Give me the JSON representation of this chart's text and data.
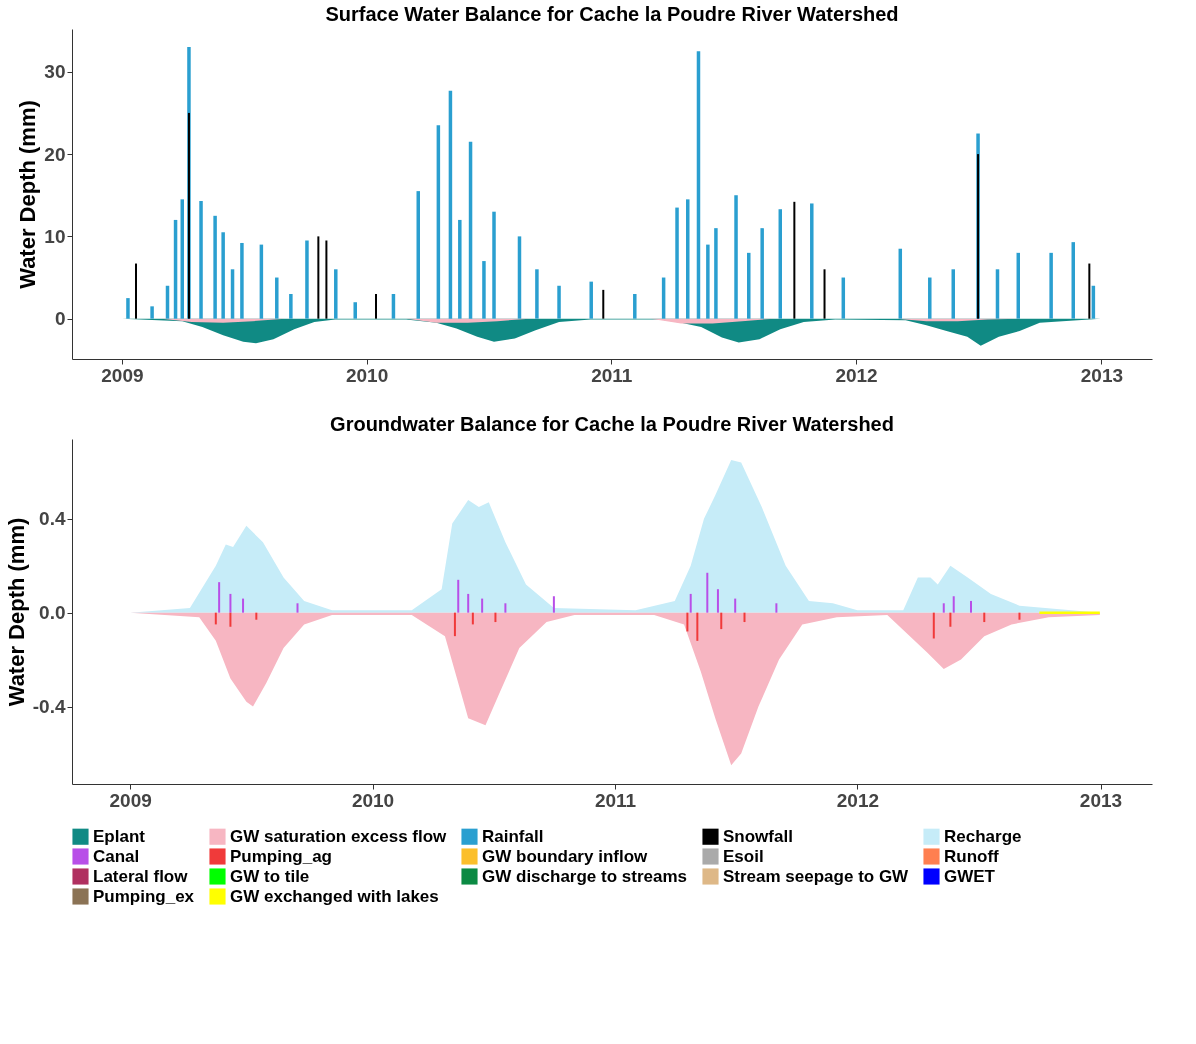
{
  "chart_data": [
    {
      "type": "bar",
      "title": "Surface Water Balance for Cache la Poudre River Watershed",
      "ylabel": "Water Depth (mm)",
      "xlim": [
        "2008-10-26",
        "2013-03-10"
      ],
      "xticks": [
        "2009",
        "2010",
        "2011",
        "2012",
        "2013"
      ],
      "ylim": [
        -4.9,
        35.2
      ],
      "yticks": [
        0,
        10,
        20,
        30
      ],
      "grid": false,
      "legend": "bottom",
      "series": [
        {
          "name": "Eplant",
          "color": "#108a84",
          "type": "area",
          "x": [
            "2009-01-01",
            "2009-04-01",
            "2009-05-01",
            "2009-06-01",
            "2009-07-01",
            "2009-07-20",
            "2009-08-15",
            "2009-09-15",
            "2009-10-15",
            "2009-11-15",
            "2010-03-01",
            "2010-04-15",
            "2010-05-15",
            "2010-06-15",
            "2010-07-10",
            "2010-08-10",
            "2010-09-10",
            "2010-10-15",
            "2010-12-01",
            "2011-03-15",
            "2011-04-15",
            "2011-05-15",
            "2011-06-15",
            "2011-07-10",
            "2011-08-10",
            "2011-09-10",
            "2011-10-15",
            "2011-12-01",
            "2012-03-15",
            "2012-04-15",
            "2012-05-15",
            "2012-06-15",
            "2012-07-05",
            "2012-08-01",
            "2012-09-01",
            "2012-10-01",
            "2012-12-31"
          ],
          "values": [
            0,
            -0.3,
            -1,
            -2,
            -2.8,
            -3,
            -2.5,
            -1.3,
            -0.4,
            -0.1,
            -0.1,
            -0.5,
            -1.2,
            -2.2,
            -2.8,
            -2.4,
            -1.4,
            -0.4,
            -0.1,
            -0.1,
            -0.5,
            -1,
            -2.3,
            -2.9,
            -2.5,
            -1.3,
            -0.4,
            -0.1,
            -0.2,
            -0.8,
            -1.5,
            -2.2,
            -3.3,
            -2.2,
            -1.5,
            -0.5,
            0
          ]
        },
        {
          "name": "GW saturation excess flow",
          "color": "#f7b6c2",
          "type": "area",
          "x": [
            "2009-03-01",
            "2009-04-15",
            "2009-06-01",
            "2009-07-15",
            "2009-09-01",
            "2010-03-01",
            "2010-04-15",
            "2010-06-01",
            "2010-07-15",
            "2010-09-01",
            "2011-03-01",
            "2011-04-15",
            "2011-06-01",
            "2011-07-15",
            "2011-09-01",
            "2012-03-01",
            "2012-04-15",
            "2012-06-01",
            "2012-07-15",
            "2012-09-01"
          ],
          "values": [
            0,
            -0.4,
            -0.5,
            -0.3,
            0,
            0,
            -0.5,
            -0.5,
            -0.3,
            0,
            0,
            -0.6,
            -0.6,
            -0.3,
            0,
            0,
            -0.3,
            -0.3,
            -0.1,
            0
          ]
        },
        {
          "name": "Rainfall",
          "color": "#2a9fd0",
          "x": [
            "2009-01-10",
            "2009-02-15",
            "2009-03-10",
            "2009-03-22",
            "2009-04-01",
            "2009-04-11",
            "2009-04-29",
            "2009-05-20",
            "2009-06-01",
            "2009-06-15",
            "2009-06-29",
            "2009-07-28",
            "2009-08-20",
            "2009-09-10",
            "2009-10-04",
            "2009-11-16",
            "2009-12-15",
            "2010-02-10",
            "2010-03-19",
            "2010-04-18",
            "2010-05-06",
            "2010-05-20",
            "2010-06-05",
            "2010-06-25",
            "2010-07-10",
            "2010-08-17",
            "2010-09-12",
            "2010-10-15",
            "2010-12-02",
            "2011-02-05",
            "2011-03-20",
            "2011-04-09",
            "2011-04-25",
            "2011-05-11",
            "2011-05-25",
            "2011-06-06",
            "2011-07-06",
            "2011-07-25",
            "2011-08-14",
            "2011-09-10",
            "2011-10-27",
            "2011-12-13",
            "2012-03-07",
            "2012-04-20",
            "2012-05-25",
            "2012-07-01",
            "2012-07-30",
            "2012-08-30",
            "2012-10-18",
            "2012-11-20",
            "2012-12-20"
          ],
          "values": [
            2.5,
            1.5,
            4,
            12,
            14.5,
            33,
            14.3,
            12.5,
            10.5,
            6,
            9.2,
            9,
            5,
            3,
            9.5,
            6,
            2,
            3,
            15.5,
            23.5,
            27.7,
            12,
            21.5,
            7,
            13,
            10,
            6,
            4,
            4.5,
            3,
            5,
            13.5,
            14.5,
            32.5,
            9,
            11,
            15,
            8,
            11,
            13.3,
            14,
            5,
            8.5,
            5,
            6,
            22.5,
            6,
            8,
            8,
            9.3,
            4
          ]
        },
        {
          "name": "Snowfall",
          "color": "#000000",
          "x": [
            "2009-01-22",
            "2009-04-11",
            "2009-10-21",
            "2009-11-02",
            "2010-01-15",
            "2010-12-20",
            "2011-10-01",
            "2011-11-15",
            "2012-07-01",
            "2012-12-14"
          ],
          "values": [
            6.7,
            25,
            10,
            9.5,
            3,
            3.5,
            14.2,
            6,
            20,
            6.7
          ]
        }
      ]
    },
    {
      "type": "area",
      "title": "Groundwater Balance for Cache la Poudre River Watershed",
      "ylabel": "Water Depth (mm)",
      "xlim": [
        "2008-10-13",
        "2013-03-12"
      ],
      "xticks": [
        "2009",
        "2010",
        "2011",
        "2012",
        "2013"
      ],
      "ylim": [
        -0.73,
        0.74
      ],
      "yticks": [
        {
          "value": -0.4,
          "label": "-0.4"
        },
        {
          "value": 0,
          "label": "0.0"
        },
        {
          "value": 0.4,
          "label": "0.4"
        }
      ],
      "grid": false,
      "legend": "bottom",
      "series": [
        {
          "name": "Recharge",
          "color": "#c6ecf8",
          "x": [
            "2009-01-01",
            "2009-04-01",
            "2009-05-10",
            "2009-05-25",
            "2009-06-05",
            "2009-06-25",
            "2009-07-20",
            "2009-08-20",
            "2009-09-20",
            "2009-11-01",
            "2010-03-01",
            "2010-04-15",
            "2010-05-01",
            "2010-05-25",
            "2010-06-10",
            "2010-06-25",
            "2010-07-20",
            "2010-08-20",
            "2010-10-01",
            "2011-02-01",
            "2011-04-01",
            "2011-04-25",
            "2011-05-15",
            "2011-06-01",
            "2011-06-25",
            "2011-07-10",
            "2011-08-10",
            "2011-09-15",
            "2011-10-20",
            "2011-11-25",
            "2012-01-01",
            "2012-03-10",
            "2012-04-01",
            "2012-04-20",
            "2012-05-01",
            "2012-05-20",
            "2012-06-15",
            "2012-07-20",
            "2012-09-01",
            "2012-12-31"
          ],
          "values": [
            0,
            0.02,
            0.2,
            0.29,
            0.28,
            0.37,
            0.3,
            0.15,
            0.05,
            0.01,
            0.01,
            0.1,
            0.38,
            0.48,
            0.45,
            0.47,
            0.3,
            0.12,
            0.02,
            0.01,
            0.05,
            0.2,
            0.4,
            0.5,
            0.65,
            0.64,
            0.45,
            0.2,
            0.05,
            0.04,
            0.01,
            0.01,
            0.15,
            0.15,
            0.12,
            0.2,
            0.15,
            0.08,
            0.03,
            0
          ]
        },
        {
          "name": "GW saturation excess flow",
          "color": "#f7b6c2",
          "x": [
            "2009-01-01",
            "2009-04-15",
            "2009-05-10",
            "2009-06-01",
            "2009-06-25",
            "2009-07-05",
            "2009-07-25",
            "2009-08-20",
            "2009-09-20",
            "2009-11-01",
            "2010-03-01",
            "2010-04-20",
            "2010-05-10",
            "2010-05-25",
            "2010-06-20",
            "2010-07-10",
            "2010-08-10",
            "2010-09-20",
            "2010-11-01",
            "2011-03-01",
            "2011-04-15",
            "2011-05-10",
            "2011-06-01",
            "2011-06-25",
            "2011-07-10",
            "2011-08-05",
            "2011-09-05",
            "2011-10-10",
            "2011-12-01",
            "2012-02-15",
            "2012-03-20",
            "2012-04-15",
            "2012-05-10",
            "2012-06-05",
            "2012-07-10",
            "2012-08-20",
            "2012-10-15",
            "2012-12-31"
          ],
          "values": [
            0,
            -0.02,
            -0.12,
            -0.28,
            -0.38,
            -0.4,
            -0.3,
            -0.15,
            -0.05,
            -0.01,
            -0.01,
            -0.1,
            -0.3,
            -0.45,
            -0.48,
            -0.35,
            -0.15,
            -0.04,
            -0.01,
            -0.01,
            -0.05,
            -0.25,
            -0.45,
            -0.65,
            -0.6,
            -0.4,
            -0.2,
            -0.05,
            -0.02,
            -0.01,
            -0.1,
            -0.17,
            -0.24,
            -0.2,
            -0.1,
            -0.05,
            -0.02,
            -0.01
          ]
        },
        {
          "name": "Canal",
          "color": "#b84fe8",
          "type": "bar",
          "x": [
            "2009-05-15",
            "2009-06-01",
            "2009-06-20",
            "2009-09-10",
            "2010-05-10",
            "2010-05-25",
            "2010-06-15",
            "2010-07-20",
            "2010-10-01",
            "2011-04-25",
            "2011-05-20",
            "2011-06-05",
            "2011-07-01",
            "2011-09-01",
            "2012-05-10",
            "2012-05-25",
            "2012-06-20"
          ],
          "values": [
            0.13,
            0.08,
            0.06,
            0.04,
            0.14,
            0.08,
            0.06,
            0.04,
            0.07,
            0.08,
            0.17,
            0.1,
            0.06,
            0.04,
            0.04,
            0.07,
            0.05
          ]
        },
        {
          "name": "Pumping_ag",
          "color": "#f03a3a",
          "type": "bar",
          "x": [
            "2009-05-10",
            "2009-06-01",
            "2009-07-10",
            "2010-05-05",
            "2010-06-01",
            "2010-07-05",
            "2011-04-20",
            "2011-05-05",
            "2011-06-10",
            "2011-07-15",
            "2012-04-25",
            "2012-05-20",
            "2012-07-10",
            "2012-09-01"
          ],
          "values": [
            -0.05,
            -0.06,
            -0.03,
            -0.1,
            -0.05,
            -0.04,
            -0.08,
            -0.12,
            -0.07,
            -0.04,
            -0.11,
            -0.06,
            -0.04,
            -0.03
          ]
        },
        {
          "name": "GW boundary inflow",
          "color": "#fbbf2b",
          "type": "line",
          "values": [
            null
          ]
        },
        {
          "name": "Esoil",
          "color": "#aaaaaa",
          "type": "line",
          "values": [
            null
          ]
        },
        {
          "name": "Runoff",
          "color": "#ff7f50",
          "type": "line",
          "values": [
            null
          ]
        },
        {
          "name": "Lateral flow",
          "color": "#b03060",
          "type": "line",
          "values": [
            null
          ]
        },
        {
          "name": "GW to tile",
          "color": "#00ff00",
          "type": "line",
          "values": [
            null
          ]
        },
        {
          "name": "GW discharge to streams",
          "color": "#0b8a43",
          "type": "line",
          "values": [
            null
          ]
        },
        {
          "name": "Stream seepage to GW",
          "color": "#deb887",
          "type": "line",
          "values": [
            null
          ]
        },
        {
          "name": "GWET",
          "color": "#0000ff",
          "type": "line",
          "values": [
            null
          ]
        },
        {
          "name": "Pumping_ex",
          "color": "#8b7355",
          "type": "line",
          "values": [
            null
          ]
        },
        {
          "name": "GW exchanged with lakes",
          "color": "#ffff00",
          "type": "line",
          "x": [
            "2012-10-01",
            "2012-12-31"
          ],
          "values": [
            0,
            0
          ]
        }
      ]
    }
  ]
}
